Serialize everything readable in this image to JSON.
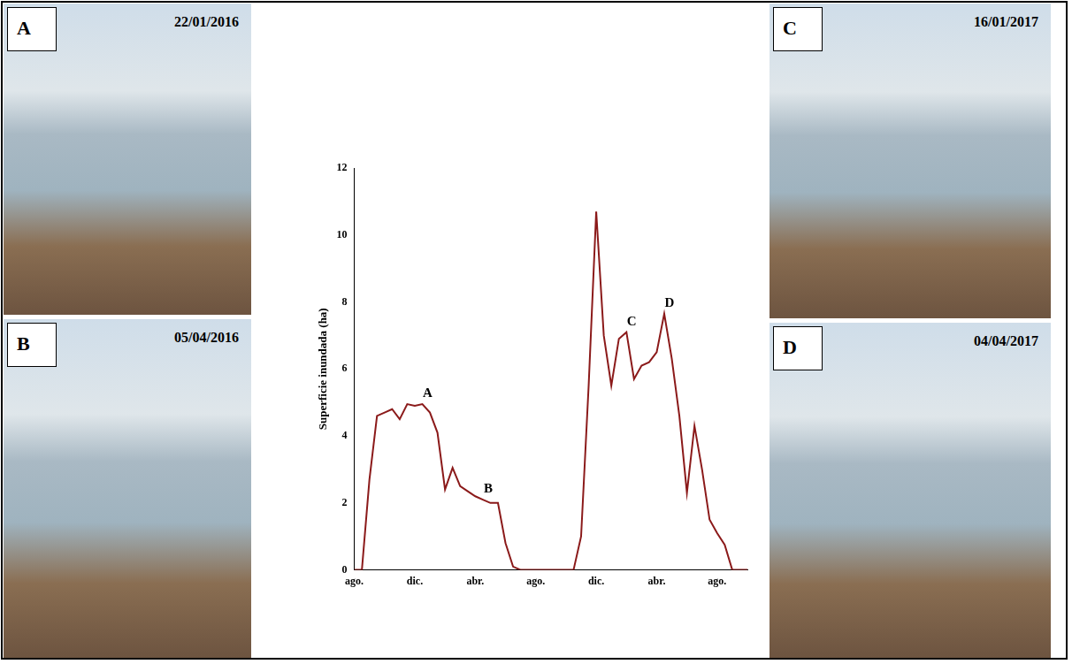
{
  "chart_data": {
    "type": "line",
    "y_label": "Superficie inundada (ha)",
    "categories": [
      "ago.",
      null,
      null,
      null,
      null,
      null,
      null,
      null,
      "dic.",
      null,
      null,
      null,
      null,
      null,
      null,
      null,
      "abr.",
      null,
      null,
      null,
      null,
      null,
      null,
      null,
      "ago.",
      null,
      null,
      null,
      null,
      null,
      null,
      null,
      "dic.",
      null,
      null,
      null,
      null,
      null,
      null,
      null,
      "abr.",
      null,
      null,
      null,
      null,
      null,
      null,
      null,
      "ago.",
      null,
      null,
      null,
      null
    ],
    "values": [
      0,
      0,
      2.7,
      4.6,
      4.7,
      4.8,
      4.5,
      4.95,
      4.9,
      4.95,
      4.7,
      4.1,
      2.4,
      3.05,
      2.5,
      2.35,
      2.2,
      2.1,
      2.0,
      2.0,
      0.8,
      0.1,
      0,
      0,
      0,
      0,
      0,
      0,
      0,
      0,
      1.0,
      5.5,
      10.7,
      7.0,
      5.5,
      6.9,
      7.1,
      5.7,
      6.1,
      6.2,
      6.5,
      7.65,
      6.3,
      4.6,
      2.3,
      4.3,
      3.0,
      1.5,
      1.1,
      0.75,
      0,
      0,
      0
    ],
    "color": "#8b1a1a",
    "ylim": [
      0,
      12
    ],
    "yticks": [
      0,
      2,
      4,
      6,
      8,
      10,
      12
    ],
    "grid": false,
    "annotations": [
      {
        "label": "A",
        "index": 9,
        "y": 4.95
      },
      {
        "label": "B",
        "index": 17,
        "y": 2.1
      },
      {
        "label": "C",
        "index": 36,
        "y": 7.1
      },
      {
        "label": "D",
        "index": 41,
        "y": 7.65
      }
    ]
  },
  "photos": [
    {
      "letter": "A",
      "date": "22/01/2016"
    },
    {
      "letter": "B",
      "date": "05/04/2016"
    },
    {
      "letter": "C",
      "date": "16/01/2017"
    },
    {
      "letter": "D",
      "date": "04/04/2017"
    }
  ]
}
